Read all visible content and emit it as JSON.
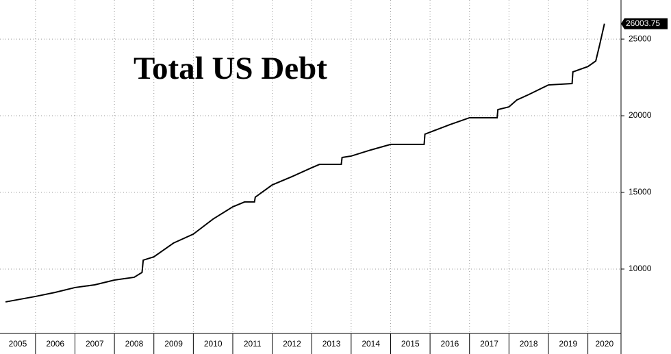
{
  "chart_data": {
    "type": "line",
    "title": "Total US Debt",
    "x": [
      2005.24,
      2006.0,
      2006.5,
      2007.0,
      2007.5,
      2008.0,
      2008.5,
      2008.7,
      2008.73,
      2009.0,
      2009.5,
      2010.0,
      2010.5,
      2011.0,
      2011.3,
      2011.55,
      2011.57,
      2012.0,
      2012.5,
      2013.0,
      2013.2,
      2013.75,
      2013.77,
      2014.0,
      2014.5,
      2015.0,
      2015.85,
      2015.87,
      2016.0,
      2016.5,
      2017.0,
      2017.7,
      2017.72,
      2018.0,
      2018.2,
      2018.5,
      2019.0,
      2019.6,
      2019.62,
      2020.0,
      2020.2,
      2020.3,
      2020.42
    ],
    "series": [
      {
        "name": "Total US Debt",
        "color": "#000000",
        "values": [
          7857,
          8215,
          8480,
          8795,
          8970,
          9285,
          9465,
          9780,
          10580,
          10800,
          11700,
          12280,
          13260,
          14060,
          14380,
          14380,
          14690,
          15490,
          16030,
          16610,
          16830,
          16830,
          17280,
          17370,
          17770,
          18130,
          18130,
          18800,
          18930,
          19420,
          19870,
          19870,
          20400,
          20580,
          21030,
          21380,
          22010,
          22100,
          22860,
          23210,
          23570,
          24640,
          26003.75
        ]
      }
    ],
    "xlim": [
      2005.1,
      2020.84
    ],
    "xticks": [
      2005,
      2006,
      2007,
      2008,
      2009,
      2010,
      2011,
      2012,
      2013,
      2014,
      2015,
      2016,
      2017,
      2018,
      2019,
      2020
    ],
    "ylim": [
      5800,
      27550
    ],
    "yticks": [
      10000,
      15000,
      20000,
      25000
    ],
    "grid": true
  }
}
